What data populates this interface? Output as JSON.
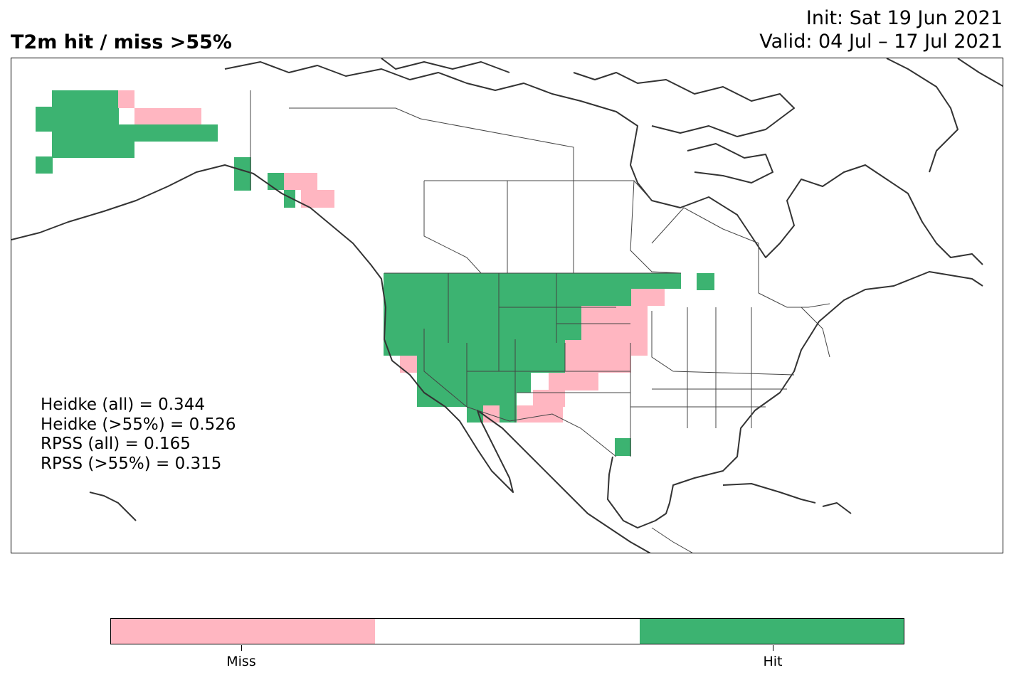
{
  "header": {
    "title": "T2m hit / miss  >55%",
    "init": "Init: Sat 19 Jun 2021",
    "valid": "Valid: 04 Jul – 17 Jul 2021"
  },
  "stats": [
    "Heidke (all) = 0.344",
    "Heidke (>55%) = 0.526",
    "RPSS (all) = 0.165",
    "RPSS (>55%) = 0.315"
  ],
  "colors": {
    "hit": "#3cb371",
    "miss": "#ffb6c1",
    "neutral": "#ffffff",
    "coast": "#333333",
    "border": "#444444"
  },
  "legend": {
    "miss_label": "Miss",
    "hit_label": "Hit"
  }
}
